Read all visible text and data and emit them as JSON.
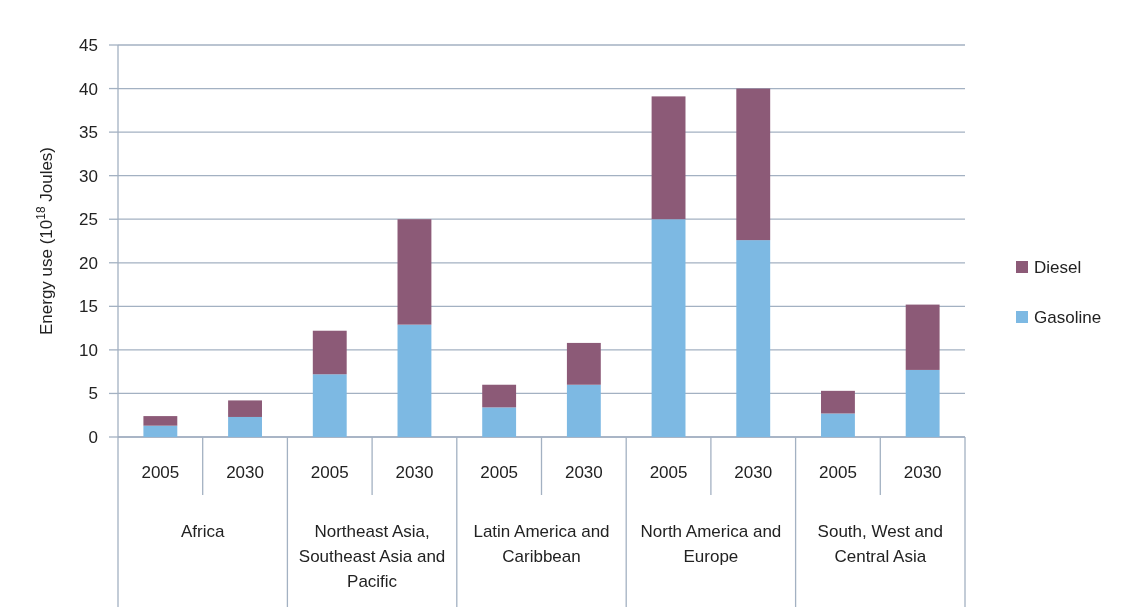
{
  "chart_data": {
    "type": "bar",
    "stacked": true,
    "ylabel": "Energy use (10$^{18}$ Joules)",
    "categories": [
      "2005",
      "2030",
      "2005",
      "2030",
      "2005",
      "2030",
      "2005",
      "2030",
      "2005",
      "2030"
    ],
    "series": [
      {
        "name": "Gasoline",
        "color": "#7db9e3",
        "values": [
          1.3,
          2.3,
          7.2,
          12.9,
          3.4,
          6.0,
          25.0,
          22.6,
          2.7,
          7.7
        ]
      },
      {
        "name": "Diesel",
        "color": "#8c5a77",
        "values": [
          1.1,
          1.9,
          5.0,
          12.1,
          2.6,
          4.8,
          14.1,
          17.4,
          2.6,
          7.5
        ]
      }
    ],
    "ylim": [
      0,
      45
    ],
    "yticks": [
      0,
      5,
      10,
      15,
      20,
      25,
      30,
      35,
      40,
      45
    ],
    "grid": "y",
    "legend": "right",
    "annotations": [
      "Africa",
      "Northeast Asia, Southeast Asia and Pacific",
      "Latin America and Caribbean",
      "North America and Europe",
      "South, West and Central Asia"
    ]
  }
}
